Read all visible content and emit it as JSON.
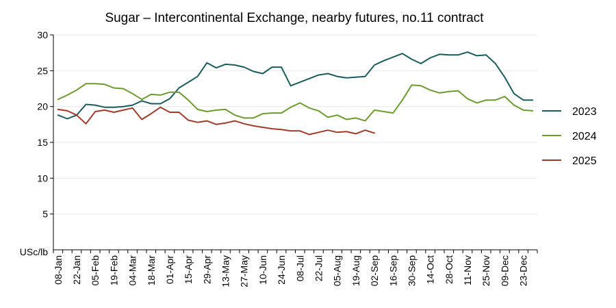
{
  "chart_data": {
    "type": "line",
    "title": "Sugar – Intercontinental Exchange, nearby futures, no.11 contract",
    "ylabel": "USc/lb",
    "xlabel": "",
    "ylim": [
      0,
      30
    ],
    "yticks": [
      5,
      10,
      15,
      20,
      25,
      30
    ],
    "grid": true,
    "legend_position": "right",
    "x_tick_labels": [
      "08-Jan",
      "22-Jan",
      "05-Feb",
      "19-Feb",
      "04-Mar",
      "18-Mar",
      "01-Apr",
      "15-Apr",
      "29-Apr",
      "13-May",
      "27-May",
      "10-Jun",
      "24-Jun",
      "08-Jul",
      "22-Jul",
      "05-Aug",
      "19-Aug",
      "02-Sep",
      "16-Sep",
      "30-Sep",
      "14-Oct",
      "28-Oct",
      "11-Nov",
      "25-Nov",
      "09-Dec",
      "23-Dec"
    ],
    "series": [
      {
        "name": "2023",
        "color": "#1b5a5a",
        "values": [
          18.8,
          18.3,
          18.8,
          20.3,
          20.2,
          19.9,
          19.9,
          20.0,
          20.2,
          20.8,
          20.4,
          20.4,
          21.1,
          22.6,
          23.4,
          24.2,
          26.1,
          25.4,
          25.9,
          25.8,
          25.5,
          24.9,
          24.6,
          25.5,
          25.5,
          22.9,
          23.4,
          23.9,
          24.4,
          24.6,
          24.2,
          24.0,
          24.1,
          24.2,
          25.8,
          26.4,
          26.9,
          27.4,
          26.6,
          26.0,
          26.8,
          27.3,
          27.2,
          27.2,
          27.6,
          27.1,
          27.2,
          26.0,
          24.1,
          21.8,
          20.9,
          20.9
        ]
      },
      {
        "name": "2024",
        "color": "#6b9a2e",
        "values": [
          21.0,
          21.6,
          22.3,
          23.2,
          23.2,
          23.1,
          22.6,
          22.5,
          21.8,
          21.0,
          21.7,
          21.6,
          22.0,
          22.0,
          20.9,
          19.6,
          19.3,
          19.5,
          19.6,
          18.8,
          18.4,
          18.4,
          19.0,
          19.1,
          19.1,
          19.9,
          20.5,
          19.8,
          19.4,
          18.5,
          18.8,
          18.2,
          18.4,
          18.0,
          19.5,
          19.3,
          19.1,
          20.9,
          23.0,
          22.9,
          22.3,
          21.9,
          22.1,
          22.2,
          21.1,
          20.5,
          20.9,
          20.9,
          21.4,
          20.2,
          19.5,
          19.4
        ]
      },
      {
        "name": "2025",
        "color": "#9e3a2a",
        "values": [
          19.6,
          19.4,
          18.8,
          17.6,
          19.3,
          19.5,
          19.2,
          19.5,
          19.8,
          18.2,
          19.0,
          19.9,
          19.2,
          19.2,
          18.1,
          17.8,
          18.0,
          17.5,
          17.7,
          18.0,
          17.6,
          17.3,
          17.1,
          16.9,
          16.8,
          16.6,
          16.6,
          16.1,
          16.4,
          16.7,
          16.4,
          16.5,
          16.2,
          16.7,
          16.3
        ]
      }
    ]
  }
}
